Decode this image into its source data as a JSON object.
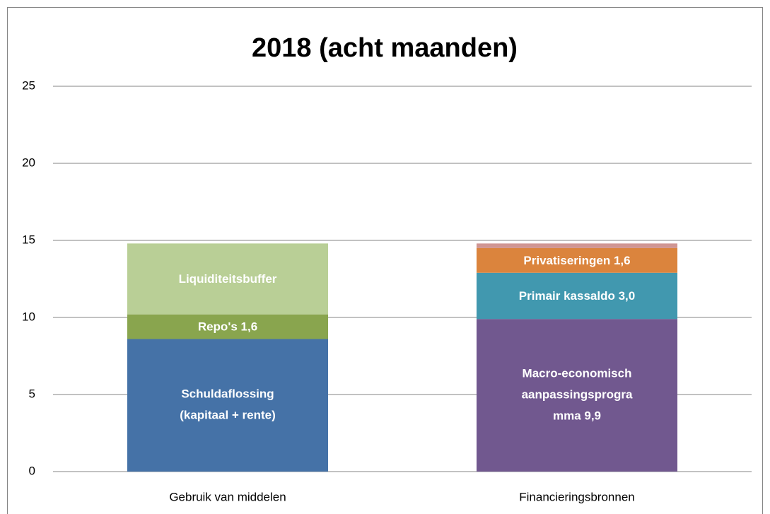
{
  "chart_data": {
    "type": "stacked_bar",
    "title": "2018 (acht maanden)",
    "categories": [
      "Gebruik van middelen",
      "Financieringsbronnen"
    ],
    "series": [
      {
        "name": "Schuldaflossing (kapitaal + rente)",
        "color": "#4572a7",
        "values": [
          8.6,
          null
        ],
        "value_labels": [
          [
            "Schuldaflossing",
            "(kapitaal + rente)"
          ],
          null
        ]
      },
      {
        "name": "Repo's",
        "color": "#89a54e",
        "values": [
          1.6,
          null
        ],
        "value_labels": [
          [
            "Repo's 1,6"
          ],
          null
        ]
      },
      {
        "name": "Liquiditeitsbuffer",
        "color": "#b9cf96",
        "values": [
          4.6,
          null
        ],
        "value_labels": [
          [
            "Liquiditeitsbuffer"
          ],
          null
        ]
      },
      {
        "name": "Macro-economisch aanpassingsprogramma",
        "color": "#71588f",
        "values": [
          null,
          9.9
        ],
        "value_labels": [
          null,
          [
            "Macro-economisch",
            "aanpassingsprogra",
            "mma 9,9"
          ]
        ]
      },
      {
        "name": "Primair kassaldo",
        "color": "#4198af",
        "values": [
          null,
          3.0
        ],
        "value_labels": [
          null,
          [
            "Primair kassaldo 3,0"
          ]
        ]
      },
      {
        "name": "Privatiseringen",
        "color": "#db843d",
        "values": [
          null,
          1.6
        ],
        "value_labels": [
          null,
          [
            "Privatiseringen 1,6"
          ]
        ]
      },
      {
        "color": "#d09693",
        "values": [
          null,
          0.3
        ]
      }
    ],
    "ylim": [
      0,
      25
    ],
    "yticks": [
      0,
      5,
      10,
      15,
      20,
      25
    ],
    "grid": true
  }
}
